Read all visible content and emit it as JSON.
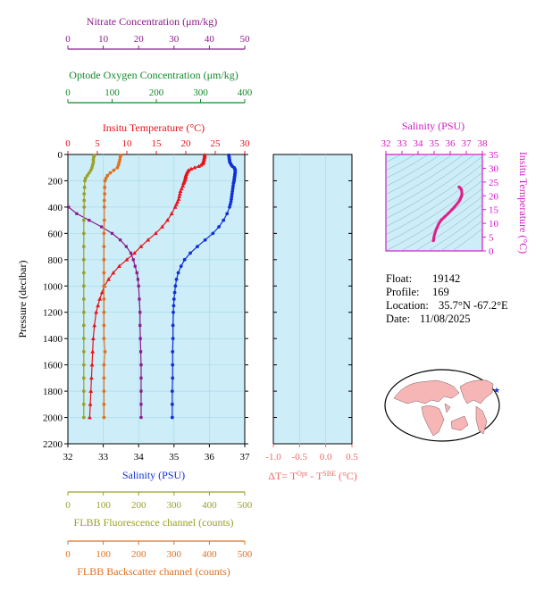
{
  "colors": {
    "nitrate": "#8b1a8b",
    "oxygen": "#118a2a",
    "temperature": "#e8121a",
    "salinity": "#1030d8",
    "fluorescence": "#9aa02a",
    "backscatter": "#e07020",
    "ts_axis": "#d418c8",
    "delta_t": "#f06868",
    "plot_bg": "#cdeef8",
    "gridline": "#a0d8e8"
  },
  "info": {
    "float_label": "Float:",
    "float_value": "19142",
    "profile_label": "Profile:",
    "profile_value": "169",
    "location_label": "Location:",
    "location_value": "35.7°N  -67.2°E",
    "date_label": "Date:",
    "date_value": "11/08/2025"
  },
  "chart_data": [
    {
      "type": "line",
      "name": "main-profile",
      "ylabel": "Pressure (decibar)",
      "ylim": [
        2200,
        0
      ],
      "yticks": [
        0,
        200,
        400,
        600,
        800,
        1000,
        1200,
        1400,
        1600,
        1800,
        2000,
        2200
      ],
      "axes": {
        "temperature": {
          "label": "Insitu Temperature (°C)",
          "range": [
            0,
            30
          ],
          "ticks": [
            0,
            5,
            10,
            15,
            20,
            25,
            30
          ],
          "position": "top"
        },
        "nitrate": {
          "label": "Nitrate Concentration (μm/kg)",
          "range": [
            0,
            50
          ],
          "ticks": [
            0,
            10,
            20,
            30,
            40,
            50
          ],
          "position": "top-extra"
        },
        "oxygen": {
          "label": "Optode Oxygen Concentration (μm/kg)",
          "range": [
            0,
            400
          ],
          "ticks": [
            0,
            100,
            200,
            300,
            400
          ],
          "position": "top-extra"
        },
        "salinity": {
          "label": "Salinity (PSU)",
          "range": [
            32,
            37
          ],
          "ticks": [
            32,
            33,
            34,
            35,
            36,
            37
          ],
          "position": "bottom"
        },
        "fluorescence": {
          "label": "FLBB Fluorescence channel (counts)",
          "range": [
            0,
            500
          ],
          "ticks": [
            0,
            100,
            200,
            300,
            400,
            500
          ],
          "position": "bottom-extra"
        },
        "backscatter": {
          "label": "FLBB Backscatter channel (counts)",
          "range": [
            0,
            500
          ],
          "ticks": [
            0,
            100,
            200,
            300,
            400,
            500
          ],
          "position": "bottom-extra"
        }
      },
      "series": [
        {
          "key": "temperature",
          "marker": "triangle",
          "pressure": [
            5,
            10,
            20,
            30,
            40,
            50,
            60,
            70,
            80,
            90,
            100,
            110,
            120,
            130,
            140,
            150,
            160,
            170,
            180,
            190,
            200,
            210,
            220,
            240,
            260,
            280,
            300,
            320,
            340,
            360,
            380,
            400,
            450,
            500,
            550,
            600,
            650,
            700,
            750,
            800,
            850,
            900,
            950,
            1000,
            1050,
            1100,
            1150,
            1200,
            1300,
            1400,
            1500,
            1600,
            1700,
            1800,
            1900,
            2000
          ],
          "values": [
            23.2,
            23.2,
            23.2,
            23.1,
            23.1,
            23.0,
            23.0,
            22.9,
            22.6,
            22.2,
            21.5,
            20.9,
            20.5,
            20.3,
            20.2,
            20.1,
            20.0,
            20.0,
            19.9,
            19.9,
            19.8,
            19.7,
            19.6,
            19.5,
            19.3,
            19.1,
            19.0,
            18.9,
            18.8,
            18.6,
            18.4,
            18.2,
            17.6,
            16.9,
            16.0,
            14.9,
            13.6,
            12.4,
            11.3,
            10.0,
            8.7,
            7.7,
            6.9,
            6.2,
            5.8,
            5.4,
            5.1,
            4.8,
            4.5,
            4.3,
            4.2,
            4.1,
            4.0,
            3.9,
            3.8,
            3.7
          ]
        },
        {
          "key": "salinity",
          "marker": "circle",
          "pressure": [
            5,
            10,
            20,
            30,
            40,
            50,
            60,
            70,
            80,
            90,
            100,
            110,
            120,
            130,
            140,
            150,
            160,
            170,
            180,
            190,
            200,
            210,
            220,
            240,
            260,
            280,
            300,
            320,
            340,
            360,
            380,
            400,
            450,
            500,
            550,
            600,
            650,
            700,
            750,
            800,
            850,
            900,
            950,
            1000,
            1050,
            1100,
            1150,
            1200,
            1300,
            1400,
            1500,
            1600,
            1700,
            1800,
            1900,
            2000
          ],
          "values": [
            36.55,
            36.55,
            36.56,
            36.56,
            36.57,
            36.57,
            36.58,
            36.6,
            36.62,
            36.65,
            36.7,
            36.72,
            36.73,
            36.73,
            36.73,
            36.72,
            36.72,
            36.71,
            36.71,
            36.7,
            36.7,
            36.69,
            36.68,
            36.67,
            36.66,
            36.65,
            36.64,
            36.63,
            36.62,
            36.61,
            36.59,
            36.57,
            36.5,
            36.4,
            36.27,
            36.1,
            35.88,
            35.66,
            35.46,
            35.3,
            35.2,
            35.12,
            35.07,
            35.04,
            35.02,
            35.0,
            34.99,
            34.98,
            34.97,
            34.97,
            34.96,
            34.96,
            34.96,
            34.95,
            34.95,
            34.95
          ]
        },
        {
          "key": "nitrate",
          "marker": "square",
          "pressure": [
            400,
            450,
            500,
            550,
            600,
            650,
            700,
            750,
            800,
            850,
            900,
            950,
            1000,
            1100,
            1200,
            1300,
            1400,
            1500,
            1600,
            1700,
            1800,
            1900,
            2000
          ],
          "values": [
            0.2,
            2.5,
            6.0,
            9.5,
            12.5,
            14.8,
            16.5,
            17.8,
            18.5,
            19.0,
            19.5,
            19.8,
            20.0,
            20.2,
            20.4,
            20.4,
            20.5,
            20.6,
            20.7,
            20.7,
            20.7,
            20.7,
            20.7
          ]
        },
        {
          "key": "fluorescence",
          "marker": "circle",
          "pressure": [
            5,
            20,
            40,
            60,
            80,
            100,
            120,
            140,
            160,
            180,
            200,
            250,
            300,
            350,
            400,
            500,
            600,
            700,
            800,
            900,
            1000,
            1100,
            1200,
            1300,
            1400,
            1500,
            1600,
            1700,
            1800,
            1900,
            2000
          ],
          "values": [
            75,
            73,
            72,
            72,
            70,
            68,
            65,
            60,
            55,
            50,
            48,
            47,
            46,
            46,
            46,
            45,
            45,
            45,
            45,
            45,
            45,
            45,
            45,
            45,
            45,
            45,
            45,
            45,
            45,
            45,
            45
          ]
        },
        {
          "key": "backscatter",
          "marker": "circle",
          "pressure": [
            5,
            20,
            40,
            60,
            80,
            100,
            120,
            140,
            160,
            180,
            200,
            250,
            300,
            350,
            400,
            500,
            600,
            700,
            800,
            900,
            1000,
            1100,
            1200,
            1300,
            1400,
            1500,
            1600,
            1700,
            1800,
            1900,
            2000
          ],
          "values": [
            150,
            148,
            147,
            145,
            143,
            140,
            130,
            120,
            112,
            108,
            105,
            104,
            104,
            103,
            103,
            103,
            102,
            102,
            102,
            102,
            102,
            102,
            102,
            102,
            102,
            105,
            102,
            102,
            102,
            102,
            102
          ]
        },
        {
          "key": "oxygen",
          "marker": "none",
          "pressure": [],
          "values": []
        }
      ]
    },
    {
      "type": "line",
      "name": "delta-t",
      "xlabel": "ΔT= T^Opt - T^SBE (°C)",
      "xlabel_main": "ΔT= T",
      "xlabel_sup1": "Opt",
      "xlabel_mid": " - T",
      "xlabel_sup2": "SBE",
      "xlabel_end": " (°C)",
      "xlim": [
        -1.0,
        0.5
      ],
      "xticks": [
        -1.0,
        -0.5,
        0.0,
        0.5
      ],
      "xtick_labels": [
        "-1.0",
        "-0.5",
        "0.0",
        "0.5"
      ],
      "ylim": [
        2200,
        0
      ],
      "series": []
    },
    {
      "type": "scatter",
      "name": "ts-diagram",
      "xlabel": "Salinity (PSU)",
      "ylabel": "Insitu Temperature (°C)",
      "xlim": [
        32,
        38
      ],
      "ylim": [
        0,
        35
      ],
      "xticks": [
        32,
        33,
        34,
        35,
        36,
        37,
        38
      ],
      "yticks": [
        0,
        5,
        10,
        15,
        20,
        25,
        30,
        35
      ],
      "points_salinity": [
        34.95,
        34.96,
        34.97,
        34.98,
        35.0,
        35.04,
        35.12,
        35.3,
        35.46,
        35.66,
        35.88,
        36.1,
        36.27,
        36.4,
        36.5,
        36.57,
        36.61,
        36.64,
        36.66,
        36.68,
        36.7,
        36.71,
        36.72,
        36.73,
        36.7,
        36.62,
        36.57,
        36.55
      ],
      "points_temperature": [
        3.7,
        3.9,
        4.1,
        4.5,
        5.4,
        6.2,
        7.7,
        10.0,
        11.3,
        12.4,
        13.6,
        14.9,
        16.0,
        16.9,
        17.6,
        18.2,
        18.6,
        19.0,
        19.3,
        19.6,
        19.8,
        20.0,
        20.2,
        20.9,
        22.2,
        22.9,
        23.1,
        23.2
      ]
    }
  ]
}
